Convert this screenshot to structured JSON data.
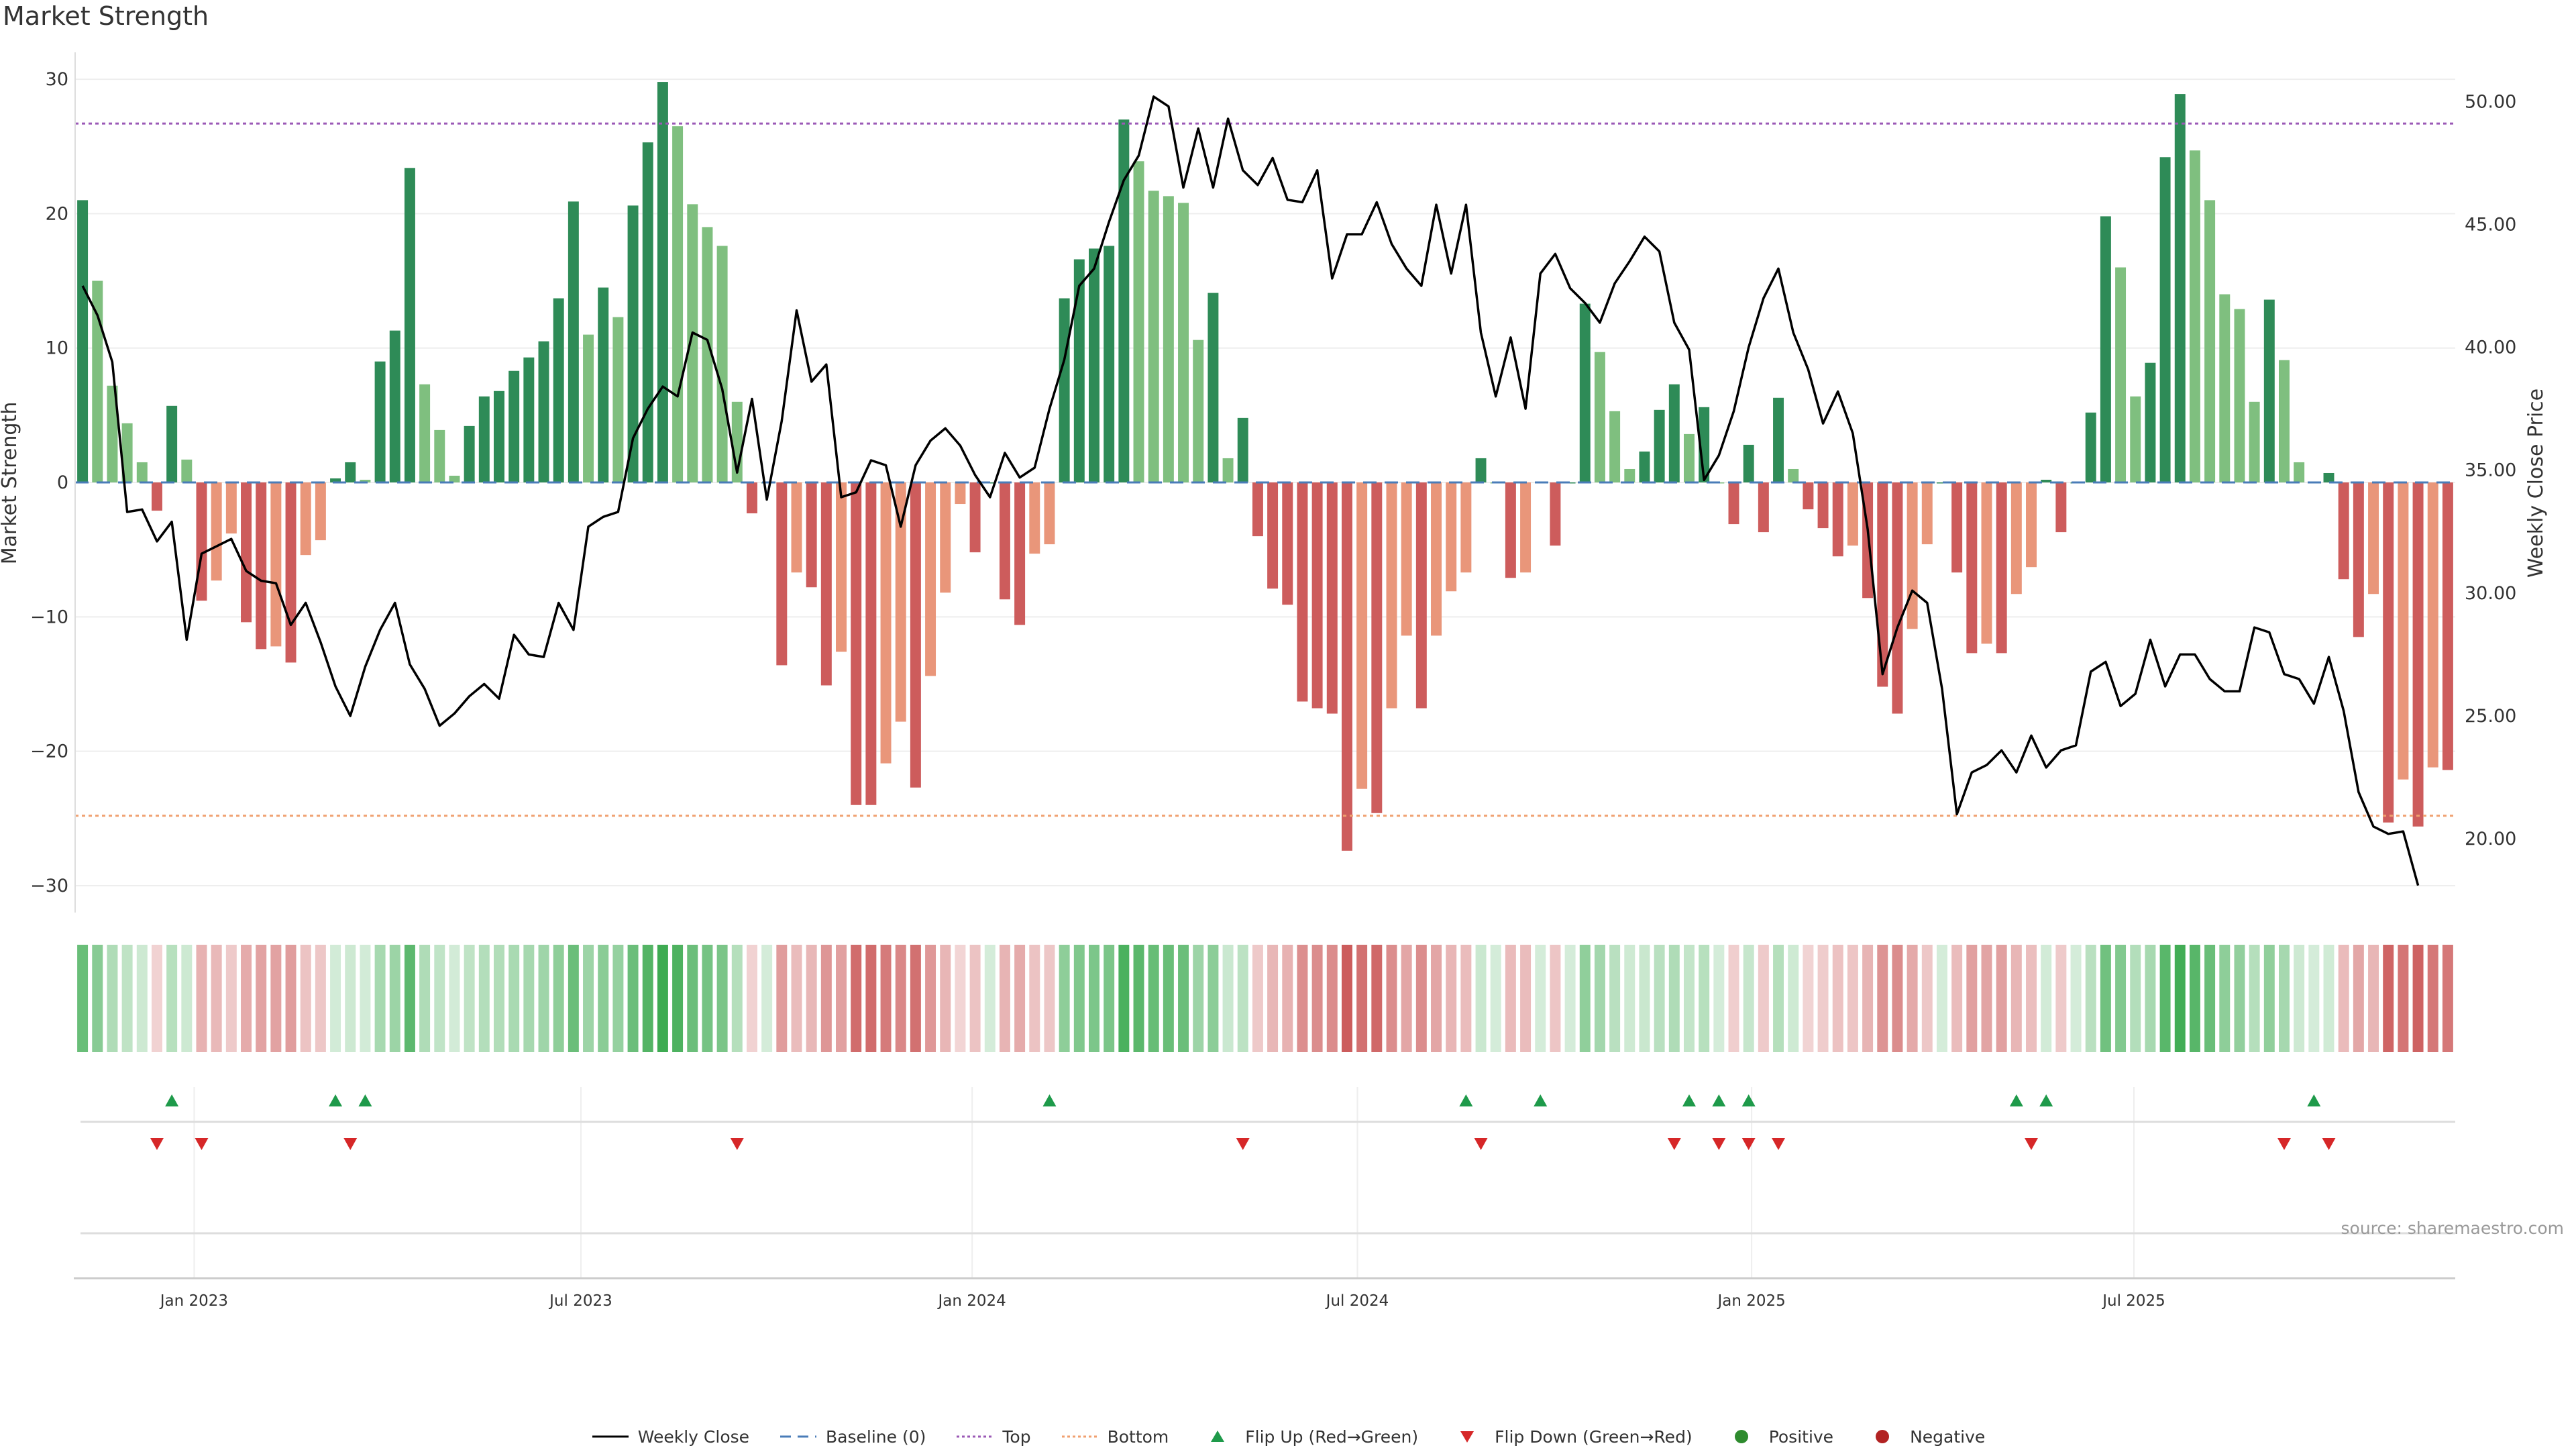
{
  "page": {
    "title": "Market Strength",
    "source": "source: sharemaestro.com"
  },
  "legend": [
    {
      "key": "weekly_close",
      "label": "Weekly Close",
      "icon": "line-icon",
      "color": "#000000",
      "style": "solid"
    },
    {
      "key": "baseline",
      "label": "Baseline (0)",
      "icon": "line-icon",
      "color": "#4a7cb8",
      "style": "dashed"
    },
    {
      "key": "top",
      "label": "Top",
      "icon": "line-icon",
      "color": "#9b59b6",
      "style": "dotted"
    },
    {
      "key": "bottom",
      "label": "Bottom",
      "icon": "line-icon",
      "color": "#f0a070",
      "style": "dotted"
    },
    {
      "key": "flip_up",
      "label": "Flip Up (Red→Green)",
      "icon": "triangle-up-icon",
      "color": "#1e9a4a"
    },
    {
      "key": "flip_down",
      "label": "Flip Down (Green→Red)",
      "icon": "triangle-down-icon",
      "color": "#d62728"
    },
    {
      "key": "positive",
      "label": "Positive",
      "icon": "circle-icon",
      "color": "#2e8b2e"
    },
    {
      "key": "negative",
      "label": "Negative",
      "icon": "circle-icon",
      "color": "#b22222"
    }
  ],
  "chart_data": {
    "type": "bar",
    "title": "Market Strength",
    "ylabel": "Market Strength",
    "y2label": "Weekly Close Price",
    "ylim": [
      -32,
      32
    ],
    "y2lim": [
      17,
      52
    ],
    "yticks": [
      -30,
      -20,
      -10,
      0,
      10,
      20,
      30
    ],
    "y2ticks": [
      "20.00",
      "25.00",
      "30.00",
      "35.00",
      "40.00",
      "45.00",
      "50.00"
    ],
    "xticks": [
      {
        "label": "Jan 2023",
        "week": 7.5
      },
      {
        "label": "Jul 2023",
        "week": 33.5
      },
      {
        "label": "Jan 2024",
        "week": 59.8
      },
      {
        "label": "Jul 2024",
        "week": 85.7
      },
      {
        "label": "Jan 2025",
        "week": 112.2
      },
      {
        "label": "Jul 2025",
        "week": 137.9
      }
    ],
    "reference_lines": {
      "baseline": 0,
      "top": 26.7,
      "bottom": -24.8
    },
    "colors": {
      "pos_strong": "#2e8b57",
      "pos_weak": "#7fbf7f",
      "neg_strong": "#cd5c5c",
      "neg_weak": "#e9967a",
      "line": "#000000",
      "flip_up": "#1e9a4a",
      "flip_down": "#d62728"
    },
    "series": [
      {
        "name": "Market Strength",
        "values": [
          21,
          15,
          7.2,
          4.4,
          1.5,
          -2.1,
          5.7,
          1.7,
          -8.8,
          -7.3,
          -3.8,
          -10.4,
          -12.4,
          -12.2,
          -13.4,
          -5.4,
          -4.3,
          0.3,
          1.5,
          0.2,
          9,
          11.3,
          23.4,
          7.3,
          3.9,
          0.5,
          4.2,
          6.4,
          6.8,
          8.3,
          9.3,
          10.5,
          13.7,
          20.9,
          11,
          14.5,
          12.3,
          20.6,
          25.3,
          29.8,
          26.5,
          20.7,
          19,
          17.6,
          6.0,
          -2.3,
          0,
          -13.6,
          -6.7,
          -7.8,
          -15.1,
          -12.6,
          -24,
          -24,
          -20.9,
          -17.8,
          -22.7,
          -14.4,
          -8.2,
          -1.6,
          -5.2,
          0,
          -8.7,
          -10.6,
          -5.3,
          -4.6,
          13.7,
          16.6,
          17.4,
          17.6,
          27,
          23.9,
          21.7,
          21.3,
          20.8,
          10.6,
          14.1,
          1.8,
          4.8,
          -4.0,
          -7.9,
          -9.1,
          -16.3,
          -16.8,
          -17.2,
          -27.4,
          -22.8,
          -24.6,
          -16.8,
          -11.4,
          -16.8,
          -11.4,
          -8.1,
          -6.7,
          1.8,
          0,
          -7.1,
          -6.7,
          0,
          -4.7,
          0,
          13.3,
          9.7,
          5.3,
          1.0,
          2.3,
          5.4,
          7.3,
          3.6,
          5.6,
          0,
          -3.1,
          2.8,
          -3.7,
          6.3,
          1.0,
          -2.0,
          -3.4,
          -5.5,
          -4.7,
          -8.6,
          -15.2,
          -17.2,
          -10.9,
          -4.6,
          0,
          -6.7,
          -12.7,
          -12.0,
          -12.7,
          -8.3,
          -6.3,
          0.2,
          -3.7,
          0,
          5.2,
          19.8,
          16,
          6.4,
          8.9,
          24.2,
          28.9,
          24.7,
          21,
          14,
          12.9,
          6,
          13.6,
          9.1,
          1.5,
          0,
          0.7,
          -7.2,
          -11.5,
          -8.3,
          -25.3,
          -22.1,
          -25.6,
          -21.2,
          -21.4
        ]
      },
      {
        "name": "Weekly Close",
        "axis": "right",
        "values": [
          42.5,
          41.3,
          39.4,
          33.3,
          33.4,
          32.1,
          32.9,
          28.1,
          31.6,
          31.9,
          32.2,
          30.9,
          30.5,
          30.4,
          28.7,
          29.6,
          28.0,
          26.2,
          25.0,
          27.0,
          28.5,
          29.6,
          27.1,
          26.1,
          24.6,
          25.1,
          25.8,
          26.3,
          25.7,
          28.3,
          27.5,
          27.4,
          29.6,
          28.5,
          32.7,
          33.1,
          33.3,
          36.3,
          37.5,
          38.4,
          38.0,
          40.6,
          40.3,
          38.3,
          34.9,
          37.9,
          33.8,
          37.0,
          41.5,
          38.6,
          39.3,
          33.9,
          34.1,
          35.4,
          35.2,
          32.7,
          35.2,
          36.2,
          36.7,
          36.0,
          34.8,
          33.9,
          35.7,
          34.7,
          35.1,
          37.5,
          39.5,
          42.5,
          43.2,
          45.1,
          46.8,
          47.8,
          50.2,
          49.8,
          46.5,
          48.9,
          46.5,
          49.3,
          47.2,
          46.6,
          47.7,
          46.0,
          45.9,
          47.2,
          42.8,
          44.6,
          44.6,
          45.9,
          44.2,
          43.2,
          42.5,
          45.8,
          43.0,
          45.8,
          40.6,
          38.0,
          40.4,
          37.5,
          43.0,
          43.8,
          42.4,
          41.8,
          41.0,
          42.6,
          43.5,
          44.5,
          43.9,
          41.0,
          39.9,
          34.6,
          35.6,
          37.4,
          40.0,
          42.0,
          43.2,
          40.6,
          39.1,
          36.9,
          38.2,
          36.5,
          32.6,
          26.7,
          28.6,
          30.1,
          29.6,
          26.1,
          21.0,
          22.7,
          23.0,
          23.6,
          22.7,
          24.2,
          22.9,
          23.6,
          23.8,
          26.8,
          27.2,
          25.4,
          25.9,
          28.1,
          26.2,
          27.5,
          27.5,
          26.5,
          26.0,
          26.0,
          28.6,
          28.4,
          26.7,
          26.5,
          25.5,
          27.4,
          25.2,
          21.9,
          20.5,
          20.2,
          20.3,
          18.1
        ]
      }
    ],
    "flip_up_weeks": [
      6,
      17,
      19,
      65,
      93,
      98,
      108,
      110,
      112,
      130,
      132,
      150
    ],
    "flip_down_weeks": [
      5,
      8,
      18,
      44,
      78,
      94,
      107,
      110,
      112,
      114,
      131,
      148,
      151
    ]
  }
}
